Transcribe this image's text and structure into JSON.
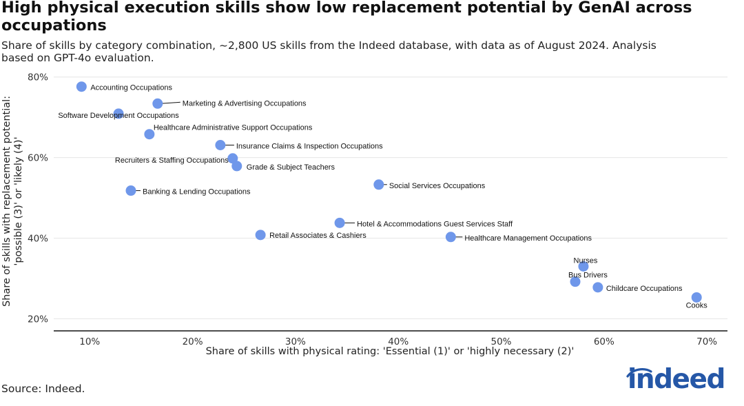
{
  "title": "High physical execution skills show low replacement potential by GenAI across occupations",
  "subtitle": "Share of skills by category combination, ~2,800 US skills from the Indeed database, with data as of August 2024. Analysis based on GPT-4o evaluation.",
  "source": "Source: Indeed.",
  "logo_text": "indeed",
  "colors": {
    "point": "#6f97ea",
    "grid": "#e6e6e6",
    "axis": "#111111",
    "logo": "#2557a7"
  },
  "chart_data": {
    "type": "scatter",
    "xlabel": "Share of skills with physical rating: 'Essential (1)' or 'highly necessary (2)'",
    "ylabel": "Share of skills with replacement potential: 'possible (3)' or 'likely (4)'",
    "xlim": [
      0.065,
      0.72
    ],
    "ylim": [
      0.17,
      0.82
    ],
    "xticks": [
      0.1,
      0.2,
      0.3,
      0.4,
      0.5,
      0.6,
      0.7
    ],
    "xtick_labels": [
      "10%",
      "20%",
      "30%",
      "40%",
      "50%",
      "60%",
      "70%"
    ],
    "yticks": [
      0.2,
      0.4,
      0.6,
      0.8
    ],
    "ytick_labels": [
      "20%",
      "40%",
      "60%",
      "80%"
    ],
    "grid": "horizontal",
    "points": [
      {
        "label": "Accounting Occupations",
        "x": 0.092,
        "y": 0.776
      },
      {
        "label": "Marketing & Advertising Occupations",
        "x": 0.166,
        "y": 0.734
      },
      {
        "label": "Software Development Occupations",
        "x": 0.128,
        "y": 0.709
      },
      {
        "label": "Healthcare Administrative Support Occupations",
        "x": 0.158,
        "y": 0.658
      },
      {
        "label": "Insurance Claims & Inspection Occupations",
        "x": 0.227,
        "y": 0.631
      },
      {
        "label": "Recruiters & Staffing Occupations",
        "x": 0.239,
        "y": 0.598
      },
      {
        "label": "Grade & Subject Teachers",
        "x": 0.243,
        "y": 0.579
      },
      {
        "label": "Social Services Occupations",
        "x": 0.381,
        "y": 0.533
      },
      {
        "label": "Banking & Lending Occupations",
        "x": 0.14,
        "y": 0.518
      },
      {
        "label": "Hotel & Accommodations Guest Services Staff",
        "x": 0.343,
        "y": 0.438
      },
      {
        "label": "Retail Associates & Cashiers",
        "x": 0.266,
        "y": 0.408
      },
      {
        "label": "Healthcare Management Occupations",
        "x": 0.451,
        "y": 0.403
      },
      {
        "label": "Nurses",
        "x": 0.58,
        "y": 0.33
      },
      {
        "label": "Bus Drivers",
        "x": 0.572,
        "y": 0.292
      },
      {
        "label": "Childcare Occupations",
        "x": 0.594,
        "y": 0.278
      },
      {
        "label": "Cooks",
        "x": 0.69,
        "y": 0.253
      }
    ]
  }
}
